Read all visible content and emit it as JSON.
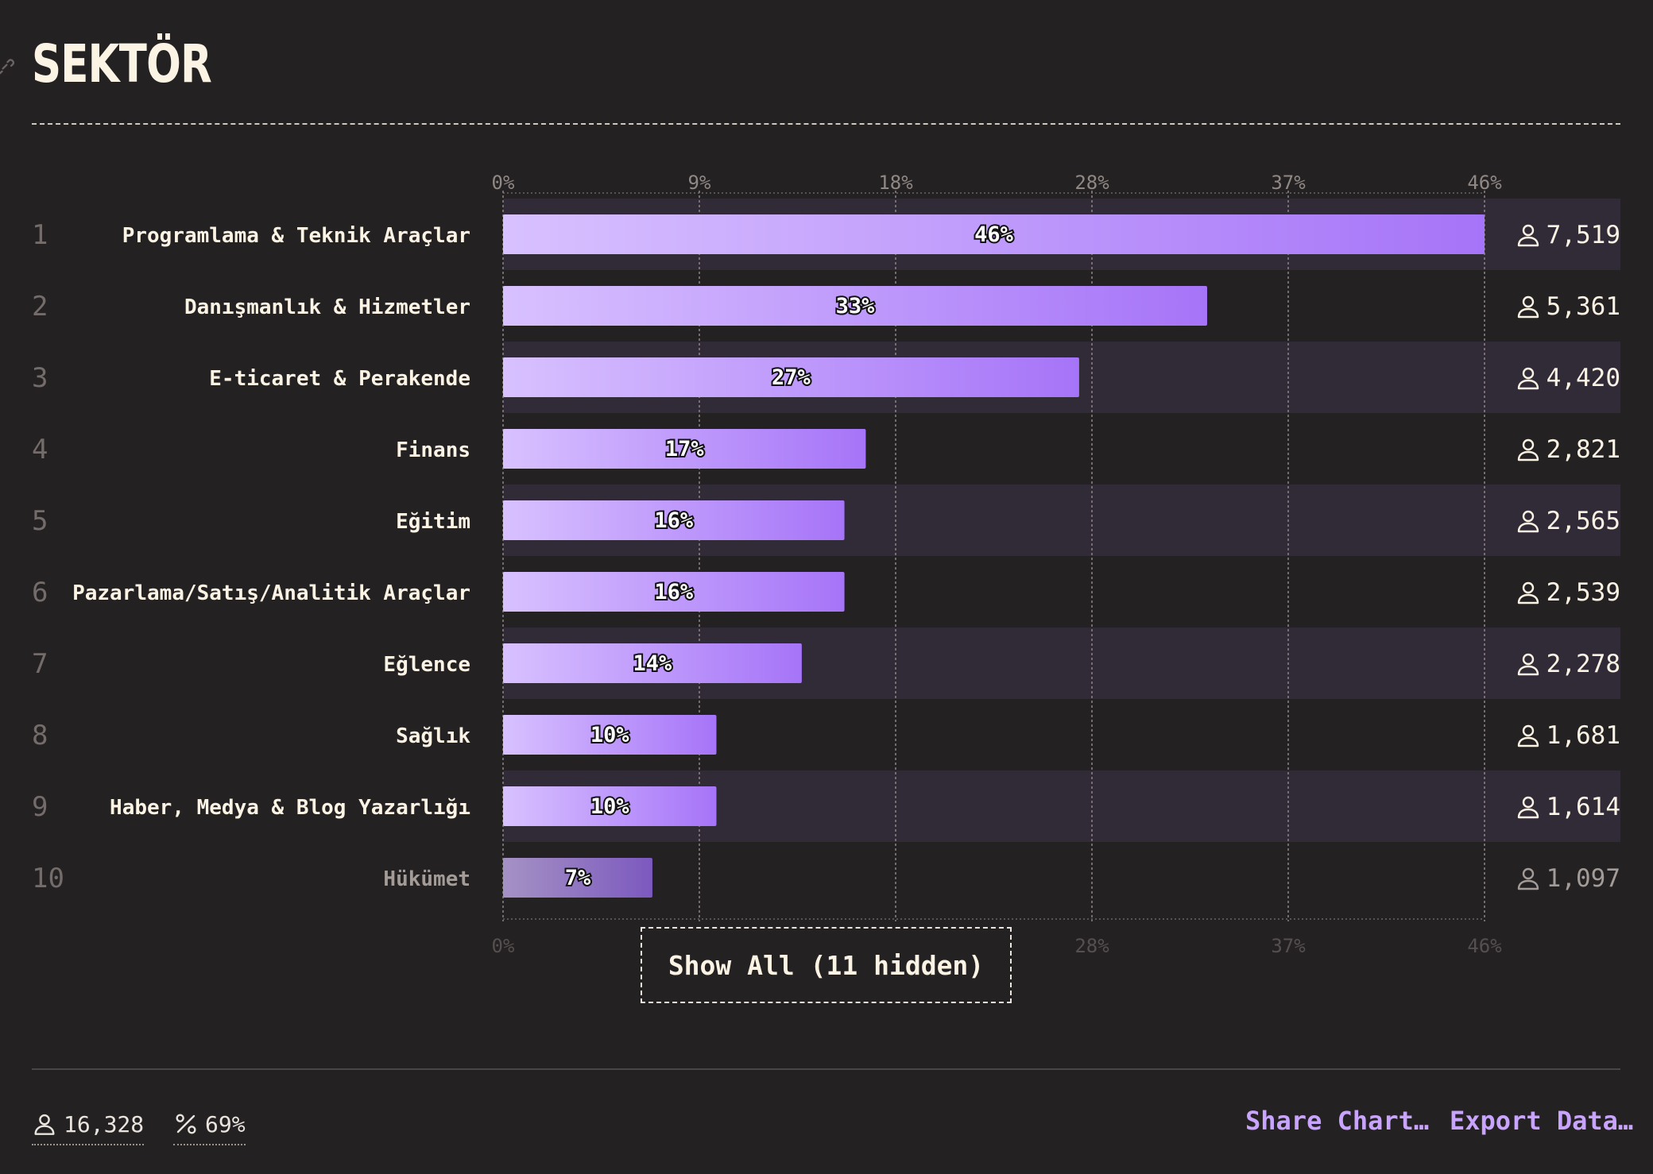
{
  "page": {
    "title": "SEKTÖR",
    "show_all_label": "Show All (11 hidden)",
    "footer": {
      "respondents": "16,328",
      "percent": "69%",
      "share_label": "Share Chart…",
      "export_label": "Export Data…"
    }
  },
  "colors": {
    "background": "#242122",
    "bar_start": "#d8c1ff",
    "bar_end": "#a674f8",
    "bar_muted_start": "#a592c4",
    "bar_muted_end": "#7c59bf",
    "row_stripe": "#312b38",
    "link_color": "#c9a4ff"
  },
  "chart_data": {
    "type": "bar",
    "orientation": "horizontal",
    "title": "SEKTÖR",
    "x_ticks": [
      "0%",
      "9%",
      "18%",
      "28%",
      "37%",
      "46%"
    ],
    "xlim": [
      0,
      46
    ],
    "grid": true,
    "categories": [
      "Programlama & Teknik Araçlar",
      "Danışmanlık & Hizmetler",
      "E-ticaret & Perakende",
      "Finans",
      "Eğitim",
      "Pazarlama/Satış/Analitik Araçlar",
      "Eğlence",
      "Sağlık",
      "Haber, Medya & Blog Yazarlığı",
      "Hükümet"
    ],
    "ranks": [
      "1",
      "2",
      "3",
      "4",
      "5",
      "6",
      "7",
      "8",
      "9",
      "10"
    ],
    "values": [
      46,
      33,
      27,
      17,
      16,
      16,
      14,
      10,
      10,
      7
    ],
    "value_labels": [
      "46%",
      "33%",
      "27%",
      "17%",
      "16%",
      "16%",
      "14%",
      "10%",
      "10%",
      "7%"
    ],
    "counts": [
      "7,519",
      "5,361",
      "4,420",
      "2,821",
      "2,565",
      "2,539",
      "2,278",
      "1,681",
      "1,614",
      "1,097"
    ]
  }
}
